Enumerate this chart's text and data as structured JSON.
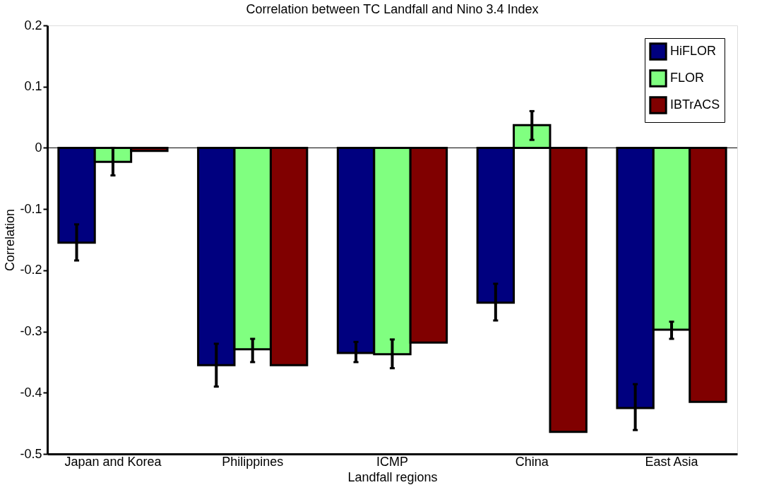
{
  "chart_data": {
    "type": "bar",
    "title": "Correlation between TC Landfall and Nino 3.4 Index",
    "xlabel": "Landfall regions",
    "ylabel": "Correlation",
    "categories": [
      "Japan and Korea",
      "Philippines",
      "ICMP",
      "China",
      "East Asia"
    ],
    "series": [
      {
        "name": "HiFLOR",
        "color": "#00007f",
        "values": [
          -0.155,
          -0.355,
          -0.335,
          -0.253,
          -0.425
        ],
        "errors": [
          [
            -0.184,
            -0.125
          ],
          [
            -0.39,
            -0.32
          ],
          [
            -0.35,
            -0.317
          ],
          [
            -0.282,
            -0.222
          ],
          [
            -0.461,
            -0.386
          ]
        ]
      },
      {
        "name": "FLOR",
        "color": "#80ff80",
        "values": [
          -0.023,
          -0.329,
          -0.337,
          0.037,
          -0.297
        ],
        "errors": [
          [
            -0.045,
            0.0
          ],
          [
            -0.35,
            -0.312
          ],
          [
            -0.36,
            -0.313
          ],
          [
            0.013,
            0.06
          ],
          [
            -0.312,
            -0.284
          ]
        ]
      },
      {
        "name": "IBTrACS",
        "color": "#800000",
        "values": [
          -0.005,
          -0.355,
          -0.318,
          -0.464,
          -0.415
        ]
      }
    ],
    "ylim": [
      -0.5,
      0.2
    ],
    "yticks": [
      -0.5,
      -0.4,
      -0.3,
      -0.2,
      -0.1,
      0,
      0.1,
      0.2
    ],
    "ref_lines": [
      {
        "axis": "y",
        "value": 0,
        "color": "#000000"
      }
    ],
    "grid": false,
    "legend": "top right"
  }
}
